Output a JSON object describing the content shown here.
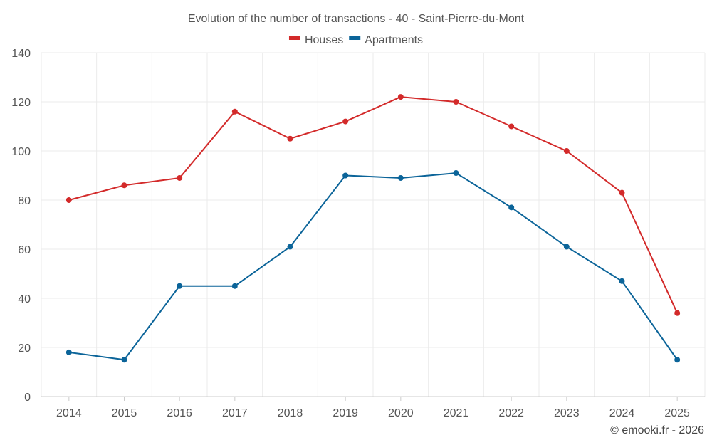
{
  "chart_data": {
    "type": "line",
    "title": "Evolution of the number of transactions - 40 - Saint-Pierre-du-Mont",
    "xlabel": "",
    "ylabel": "",
    "categories": [
      "2014",
      "2015",
      "2016",
      "2017",
      "2018",
      "2019",
      "2020",
      "2021",
      "2022",
      "2023",
      "2024",
      "2025"
    ],
    "ylim": [
      0,
      140
    ],
    "yticks": [
      "0",
      "20",
      "40",
      "60",
      "80",
      "100",
      "120",
      "140"
    ],
    "grid": true,
    "legend_position": "top-center",
    "series": [
      {
        "name": "Houses",
        "color": "#d32a2a",
        "values": [
          80,
          86,
          89,
          116,
          105,
          112,
          122,
          120,
          110,
          100,
          83,
          34
        ]
      },
      {
        "name": "Apartments",
        "color": "#0b6499",
        "values": [
          18,
          15,
          45,
          45,
          61,
          90,
          89,
          91,
          77,
          61,
          47,
          15
        ]
      }
    ]
  },
  "credit": "© emooki.fr - 2026"
}
